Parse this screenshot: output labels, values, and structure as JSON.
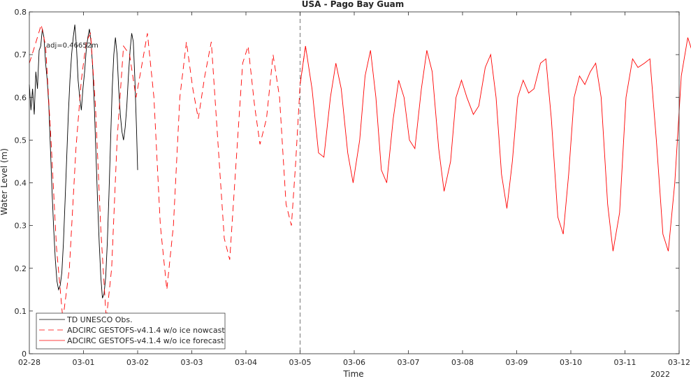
{
  "chart_data": {
    "type": "line",
    "title": "USA - Pago Bay Guam",
    "xlabel": "Time",
    "ylabel": "Water Level (m)",
    "year_label": "2022",
    "annotation": "adj=0.46652m",
    "grid": false,
    "legend_position": "bottom-left",
    "xlim": [
      "02-28",
      "03-12"
    ],
    "ylim": [
      0,
      0.8
    ],
    "x_ticks": [
      "02-28",
      "03-01",
      "03-02",
      "03-03",
      "03-04",
      "03-05",
      "03-06",
      "03-07",
      "03-08",
      "03-09",
      "03-10",
      "03-11",
      "03-12"
    ],
    "y_ticks": [
      "0",
      "0.1",
      "0.2",
      "0.3",
      "0.4",
      "0.5",
      "0.6",
      "0.7",
      "0.8"
    ],
    "nowcast_end": "03-05",
    "colors": {
      "observed": "#000000",
      "model": "#ff0000",
      "axis": "#262626"
    },
    "series": [
      {
        "name": "TD UNESCO Obs.",
        "style": "solid",
        "color": "#000000",
        "x_unit": "days since 02-28",
        "points": [
          [
            0.0,
            0.63
          ],
          [
            0.03,
            0.57
          ],
          [
            0.06,
            0.62
          ],
          [
            0.09,
            0.56
          ],
          [
            0.12,
            0.66
          ],
          [
            0.15,
            0.62
          ],
          [
            0.18,
            0.71
          ],
          [
            0.21,
            0.72
          ],
          [
            0.24,
            0.76
          ],
          [
            0.27,
            0.74
          ],
          [
            0.3,
            0.68
          ],
          [
            0.33,
            0.64
          ],
          [
            0.36,
            0.58
          ],
          [
            0.39,
            0.48
          ],
          [
            0.42,
            0.38
          ],
          [
            0.45,
            0.29
          ],
          [
            0.48,
            0.22
          ],
          [
            0.51,
            0.17
          ],
          [
            0.54,
            0.15
          ],
          [
            0.57,
            0.16
          ],
          [
            0.6,
            0.19
          ],
          [
            0.63,
            0.26
          ],
          [
            0.66,
            0.36
          ],
          [
            0.69,
            0.46
          ],
          [
            0.72,
            0.56
          ],
          [
            0.75,
            0.64
          ],
          [
            0.78,
            0.7
          ],
          [
            0.81,
            0.74
          ],
          [
            0.84,
            0.77
          ],
          [
            0.87,
            0.72
          ],
          [
            0.9,
            0.64
          ],
          [
            0.93,
            0.6
          ],
          [
            0.96,
            0.57
          ],
          [
            0.99,
            0.62
          ],
          [
            1.02,
            0.66
          ],
          [
            1.05,
            0.71
          ],
          [
            1.08,
            0.74
          ],
          [
            1.11,
            0.76
          ],
          [
            1.14,
            0.73
          ],
          [
            1.17,
            0.67
          ],
          [
            1.2,
            0.58
          ],
          [
            1.23,
            0.47
          ],
          [
            1.26,
            0.36
          ],
          [
            1.29,
            0.26
          ],
          [
            1.32,
            0.18
          ],
          [
            1.35,
            0.13
          ],
          [
            1.38,
            0.14
          ],
          [
            1.41,
            0.18
          ],
          [
            1.44,
            0.26
          ],
          [
            1.47,
            0.37
          ],
          [
            1.5,
            0.5
          ],
          [
            1.53,
            0.62
          ],
          [
            1.56,
            0.7
          ],
          [
            1.59,
            0.74
          ],
          [
            1.62,
            0.7
          ],
          [
            1.65,
            0.62
          ],
          [
            1.68,
            0.56
          ],
          [
            1.71,
            0.52
          ],
          [
            1.74,
            0.5
          ],
          [
            1.77,
            0.53
          ],
          [
            1.8,
            0.58
          ],
          [
            1.83,
            0.65
          ],
          [
            1.86,
            0.71
          ],
          [
            1.89,
            0.75
          ],
          [
            1.92,
            0.73
          ],
          [
            1.95,
            0.64
          ],
          [
            1.98,
            0.52
          ],
          [
            2.0,
            0.43
          ]
        ]
      },
      {
        "name": "ADCIRC GESTOFS-v4.1.4 w/o ice nowcast",
        "style": "dashed",
        "color": "#ff0000",
        "x_unit": "days since 02-28",
        "points": [
          [
            0.0,
            0.68
          ],
          [
            0.1,
            0.72
          ],
          [
            0.22,
            0.77
          ],
          [
            0.3,
            0.72
          ],
          [
            0.4,
            0.5
          ],
          [
            0.5,
            0.25
          ],
          [
            0.62,
            0.08
          ],
          [
            0.74,
            0.2
          ],
          [
            0.86,
            0.48
          ],
          [
            0.96,
            0.64
          ],
          [
            1.05,
            0.73
          ],
          [
            1.13,
            0.75
          ],
          [
            1.22,
            0.58
          ],
          [
            1.32,
            0.29
          ],
          [
            1.42,
            0.08
          ],
          [
            1.52,
            0.2
          ],
          [
            1.62,
            0.5
          ],
          [
            1.74,
            0.72
          ],
          [
            1.85,
            0.7
          ],
          [
            1.97,
            0.6
          ],
          [
            2.07,
            0.67
          ],
          [
            2.18,
            0.75
          ],
          [
            2.3,
            0.6
          ],
          [
            2.42,
            0.3
          ],
          [
            2.54,
            0.15
          ],
          [
            2.66,
            0.3
          ],
          [
            2.78,
            0.6
          ],
          [
            2.9,
            0.73
          ],
          [
            3.02,
            0.62
          ],
          [
            3.12,
            0.55
          ],
          [
            3.24,
            0.65
          ],
          [
            3.36,
            0.73
          ],
          [
            3.48,
            0.5
          ],
          [
            3.6,
            0.27
          ],
          [
            3.7,
            0.22
          ],
          [
            3.82,
            0.45
          ],
          [
            3.94,
            0.68
          ],
          [
            4.04,
            0.72
          ],
          [
            4.16,
            0.58
          ],
          [
            4.26,
            0.49
          ],
          [
            4.38,
            0.55
          ],
          [
            4.5,
            0.7
          ],
          [
            4.62,
            0.6
          ],
          [
            4.74,
            0.35
          ],
          [
            4.84,
            0.3
          ],
          [
            4.92,
            0.45
          ],
          [
            5.0,
            0.63
          ],
          [
            5.1,
            0.72
          ]
        ]
      },
      {
        "name": "ADCIRC GESTOFS-v4.1.4 w/o ice forecast",
        "style": "solid",
        "color": "#ff0000",
        "x_unit": "days since 02-28",
        "points": [
          [
            5.0,
            0.63
          ],
          [
            5.1,
            0.72
          ],
          [
            5.22,
            0.62
          ],
          [
            5.34,
            0.47
          ],
          [
            5.44,
            0.46
          ],
          [
            5.56,
            0.6
          ],
          [
            5.66,
            0.68
          ],
          [
            5.76,
            0.62
          ],
          [
            5.88,
            0.47
          ],
          [
            5.98,
            0.4
          ],
          [
            6.1,
            0.5
          ],
          [
            6.2,
            0.65
          ],
          [
            6.3,
            0.71
          ],
          [
            6.4,
            0.6
          ],
          [
            6.5,
            0.43
          ],
          [
            6.6,
            0.4
          ],
          [
            6.72,
            0.55
          ],
          [
            6.82,
            0.64
          ],
          [
            6.92,
            0.6
          ],
          [
            7.02,
            0.5
          ],
          [
            7.12,
            0.48
          ],
          [
            7.24,
            0.62
          ],
          [
            7.34,
            0.71
          ],
          [
            7.44,
            0.66
          ],
          [
            7.56,
            0.48
          ],
          [
            7.66,
            0.38
          ],
          [
            7.78,
            0.45
          ],
          [
            7.88,
            0.6
          ],
          [
            7.98,
            0.64
          ],
          [
            8.08,
            0.6
          ],
          [
            8.2,
            0.56
          ],
          [
            8.3,
            0.58
          ],
          [
            8.42,
            0.67
          ],
          [
            8.52,
            0.7
          ],
          [
            8.62,
            0.6
          ],
          [
            8.72,
            0.42
          ],
          [
            8.82,
            0.34
          ],
          [
            8.92,
            0.45
          ],
          [
            9.02,
            0.6
          ],
          [
            9.12,
            0.64
          ],
          [
            9.22,
            0.61
          ],
          [
            9.32,
            0.62
          ],
          [
            9.44,
            0.68
          ],
          [
            9.54,
            0.69
          ],
          [
            9.64,
            0.55
          ],
          [
            9.76,
            0.32
          ],
          [
            9.86,
            0.28
          ],
          [
            9.96,
            0.42
          ],
          [
            10.06,
            0.6
          ],
          [
            10.16,
            0.65
          ],
          [
            10.26,
            0.63
          ],
          [
            10.36,
            0.66
          ],
          [
            10.46,
            0.68
          ],
          [
            10.56,
            0.6
          ],
          [
            10.68,
            0.35
          ],
          [
            10.78,
            0.24
          ],
          [
            10.9,
            0.33
          ],
          [
            11.02,
            0.6
          ],
          [
            11.14,
            0.69
          ],
          [
            11.24,
            0.67
          ],
          [
            11.36,
            0.68
          ],
          [
            11.46,
            0.69
          ],
          [
            11.58,
            0.5
          ],
          [
            11.7,
            0.28
          ],
          [
            11.8,
            0.24
          ],
          [
            11.92,
            0.4
          ],
          [
            12.04,
            0.65
          ],
          [
            12.16,
            0.74
          ],
          [
            12.26,
            0.7
          ],
          [
            12.3,
            0.69
          ]
        ]
      }
    ]
  }
}
